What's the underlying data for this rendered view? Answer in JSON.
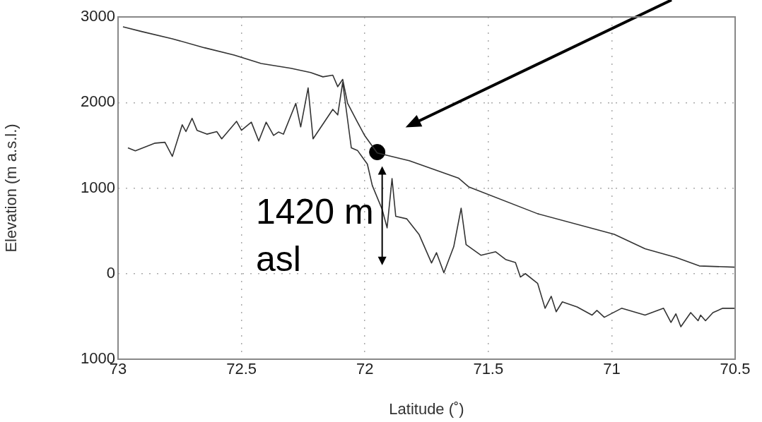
{
  "chart_data": {
    "type": "line",
    "xlabel": "Latitude (˚)",
    "ylabel": "Elevation (m a.s.l.)",
    "xlim": [
      73,
      70.5
    ],
    "xticks": [
      73,
      72.5,
      72,
      71.5,
      71,
      70.5
    ],
    "ylim": [
      -1000,
      3000
    ],
    "yticks": [
      {
        "value": -1000,
        "label": "1000"
      },
      0,
      1000,
      2000,
      3000
    ],
    "grid": true,
    "legend": false,
    "marker": "none",
    "line_style": "solid",
    "annotations": [
      {
        "text": "1420 m asl",
        "x": 71.95,
        "y": 1420
      }
    ],
    "series": [
      {
        "color": "#333333",
        "x": [
          72.98,
          72.905,
          72.78,
          72.65,
          72.53,
          72.42,
          72.3,
          72.22,
          72.17,
          72.13,
          72.11,
          72.09,
          72.07,
          72.03,
          72,
          71.95,
          71.82,
          71.62,
          71.58,
          71.3,
          70.99,
          70.865,
          70.74,
          70.645,
          70.5
        ],
        "values": [
          2885,
          2830,
          2745,
          2640,
          2555,
          2455,
          2400,
          2350,
          2300,
          2320,
          2185,
          2270,
          1990,
          1770,
          1610,
          1410,
          1320,
          1115,
          1015,
          700,
          460,
          290,
          190,
          90,
          75
        ]
      },
      {
        "color": "#333333",
        "x": [
          72.96,
          72.93,
          72.85,
          72.81,
          72.78,
          72.74,
          72.725,
          72.7,
          72.68,
          72.64,
          72.6,
          72.58,
          72.52,
          72.5,
          72.46,
          72.43,
          72.4,
          72.37,
          72.35,
          72.33,
          72.28,
          72.26,
          72.23,
          72.21,
          72.13,
          72.11,
          72.09,
          72.055,
          72.03,
          71.99,
          71.97,
          71.93,
          71.91,
          71.89,
          71.875,
          71.83,
          71.78,
          71.73,
          71.71,
          71.68,
          71.64,
          71.61,
          71.59,
          71.53,
          71.47,
          71.43,
          71.39,
          71.37,
          71.35,
          71.3,
          71.27,
          71.245,
          71.225,
          71.2,
          71.14,
          71.08,
          71.06,
          71.03,
          70.96,
          70.865,
          70.79,
          70.76,
          70.74,
          70.72,
          70.68,
          70.65,
          70.64,
          70.62,
          70.59,
          70.55,
          70.5
        ],
        "values": [
          1470,
          1435,
          1525,
          1535,
          1370,
          1740,
          1660,
          1815,
          1675,
          1630,
          1660,
          1575,
          1780,
          1675,
          1770,
          1550,
          1770,
          1615,
          1655,
          1630,
          1990,
          1715,
          2170,
          1575,
          1920,
          1855,
          2235,
          1470,
          1440,
          1280,
          1030,
          750,
          535,
          1110,
          670,
          640,
          455,
          125,
          245,
          10,
          315,
          765,
          340,
          215,
          255,
          165,
          130,
          -40,
          0,
          -115,
          -405,
          -265,
          -445,
          -330,
          -390,
          -485,
          -430,
          -510,
          -405,
          -485,
          -405,
          -570,
          -470,
          -620,
          -455,
          -550,
          -485,
          -550,
          -455,
          -405,
          -405
        ]
      },
      {
        "type": "scatter",
        "color": "#000000",
        "marker": "circle",
        "x": [
          71.95
        ],
        "values": [
          1420
        ]
      }
    ]
  }
}
